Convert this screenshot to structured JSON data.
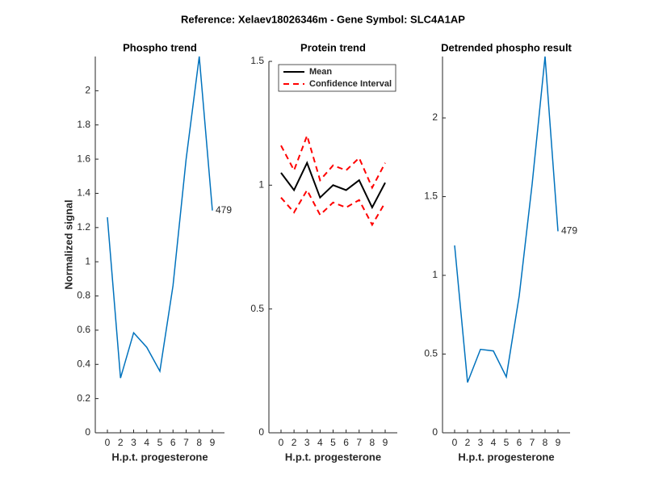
{
  "title": "Reference:  Xelaev18026346m - Gene Symbol:  SLC4A1AP",
  "chart_data": [
    {
      "type": "line",
      "title": "Phospho trend",
      "xlabel": "H.p.t. progesterone",
      "ylabel": "Normalized signal",
      "categories": [
        "0",
        "2",
        "3",
        "4",
        "5",
        "6",
        "7",
        "8",
        "9"
      ],
      "series": [
        {
          "color": "#0072bd",
          "values": [
            1.26,
            0.32,
            0.585,
            0.5,
            0.36,
            0.86,
            1.6,
            2.2,
            1.3
          ]
        }
      ],
      "end_label": "479",
      "ylim": [
        0,
        2.2
      ],
      "yticks": [
        0,
        0.2,
        0.4,
        0.6,
        0.8,
        1,
        1.2,
        1.4,
        1.6,
        1.8,
        2
      ]
    },
    {
      "type": "band-line",
      "title": "Protein trend",
      "xlabel": "H.p.t. progesterone",
      "categories": [
        "0",
        "2",
        "3",
        "4",
        "5",
        "6",
        "7",
        "8",
        "9"
      ],
      "series": [
        {
          "name": "Mean",
          "color": "#000000",
          "values": [
            1.05,
            0.98,
            1.09,
            0.95,
            1.0,
            0.98,
            1.02,
            0.91,
            1.01
          ]
        },
        {
          "name": "Confidence Interval",
          "color": "#ff0000",
          "upper": [
            1.16,
            1.06,
            1.2,
            1.02,
            1.08,
            1.06,
            1.11,
            0.99,
            1.09
          ],
          "lower": [
            0.95,
            0.89,
            0.98,
            0.88,
            0.93,
            0.91,
            0.94,
            0.84,
            0.93
          ]
        }
      ],
      "ylim": [
        0,
        1.5
      ],
      "yticks": [
        0,
        0.5,
        1,
        1.5
      ]
    },
    {
      "type": "line",
      "title": "Detrended phospho result",
      "xlabel": "H.p.t. progesterone",
      "categories": [
        "0",
        "2",
        "3",
        "4",
        "5",
        "6",
        "7",
        "8",
        "9"
      ],
      "series": [
        {
          "color": "#0072bd",
          "values": [
            1.19,
            0.32,
            0.53,
            0.52,
            0.355,
            0.87,
            1.58,
            2.39,
            1.28
          ]
        }
      ],
      "end_label": "479",
      "ylim": [
        0,
        2.39
      ],
      "yticks": [
        0,
        0.5,
        1,
        1.5,
        2
      ]
    }
  ]
}
